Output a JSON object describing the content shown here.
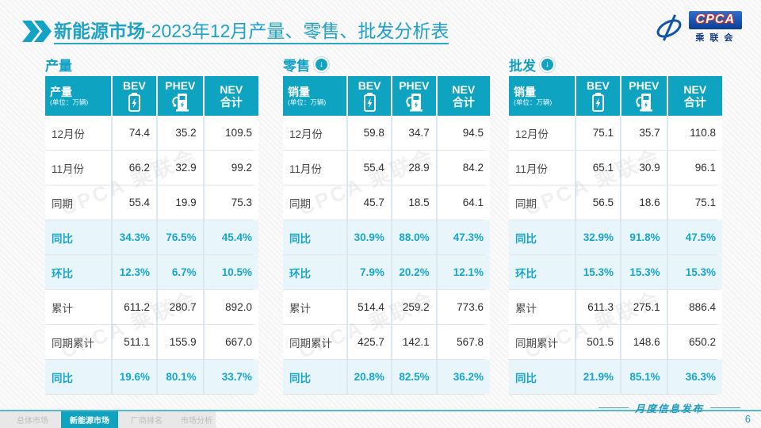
{
  "slide": {
    "title_bold": "新能源市场",
    "title_rest": "-2023年12月产量、零售、批发分析表",
    "logo": {
      "acronym": "CPCA",
      "name_cn": "乘联会"
    },
    "watermark": "CPCA 乘联会"
  },
  "tables": [
    {
      "section_title": "产量",
      "corner_label": "产量",
      "corner_unit": "(单位：万辆)",
      "col_bev": "BEV",
      "col_phev": "PHEV",
      "col_nev": "NEV\n合计",
      "rows": [
        {
          "label": "12月份",
          "values": [
            "74.4",
            "35.2",
            "109.5"
          ],
          "highlight": false
        },
        {
          "label": "11月份",
          "values": [
            "66.2",
            "32.9",
            "99.2"
          ],
          "highlight": false
        },
        {
          "label": "同期",
          "values": [
            "55.4",
            "19.9",
            "75.3"
          ],
          "highlight": false
        },
        {
          "label": "同比",
          "values": [
            "34.3%",
            "76.5%",
            "45.4%"
          ],
          "highlight": true
        },
        {
          "label": "环比",
          "values": [
            "12.3%",
            "6.7%",
            "10.5%"
          ],
          "highlight": true
        },
        {
          "label": "累计",
          "values": [
            "611.2",
            "280.7",
            "892.0"
          ],
          "highlight": false
        },
        {
          "label": "同期累计",
          "values": [
            "511.1",
            "155.9",
            "667.0"
          ],
          "highlight": false
        },
        {
          "label": "同比",
          "values": [
            "19.6%",
            "80.1%",
            "33.7%"
          ],
          "highlight": true
        }
      ]
    },
    {
      "section_title": "零售",
      "corner_label": "销量",
      "corner_unit": "(单位：万辆)",
      "col_bev": "BEV",
      "col_phev": "PHEV",
      "col_nev": "NEV\n合计",
      "rows": [
        {
          "label": "12月份",
          "values": [
            "59.8",
            "34.7",
            "94.5"
          ],
          "highlight": false
        },
        {
          "label": "11月份",
          "values": [
            "55.4",
            "28.9",
            "84.2"
          ],
          "highlight": false
        },
        {
          "label": "同期",
          "values": [
            "45.7",
            "18.5",
            "64.1"
          ],
          "highlight": false
        },
        {
          "label": "同比",
          "values": [
            "30.9%",
            "88.0%",
            "47.3%"
          ],
          "highlight": true
        },
        {
          "label": "环比",
          "values": [
            "7.9%",
            "20.2%",
            "12.1%"
          ],
          "highlight": true
        },
        {
          "label": "累计",
          "values": [
            "514.4",
            "259.2",
            "773.6"
          ],
          "highlight": false
        },
        {
          "label": "同期累计",
          "values": [
            "425.7",
            "142.1",
            "567.8"
          ],
          "highlight": false
        },
        {
          "label": "同比",
          "values": [
            "20.8%",
            "82.5%",
            "36.2%"
          ],
          "highlight": true
        }
      ]
    },
    {
      "section_title": "批发",
      "corner_label": "销量",
      "corner_unit": "(单位：万辆)",
      "col_bev": "BEV",
      "col_phev": "PHEV",
      "col_nev": "NEV\n合计",
      "rows": [
        {
          "label": "12月份",
          "values": [
            "75.1",
            "35.7",
            "110.8"
          ],
          "highlight": false
        },
        {
          "label": "11月份",
          "values": [
            "65.1",
            "30.9",
            "96.1"
          ],
          "highlight": false
        },
        {
          "label": "同期",
          "values": [
            "56.5",
            "18.6",
            "75.1"
          ],
          "highlight": false
        },
        {
          "label": "同比",
          "values": [
            "32.9%",
            "91.8%",
            "47.5%"
          ],
          "highlight": true
        },
        {
          "label": "环比",
          "values": [
            "15.3%",
            "15.3%",
            "15.3%"
          ],
          "highlight": true
        },
        {
          "label": "累计",
          "values": [
            "611.3",
            "275.1",
            "886.4"
          ],
          "highlight": false
        },
        {
          "label": "同期累计",
          "values": [
            "501.5",
            "148.6",
            "650.2"
          ],
          "highlight": false
        },
        {
          "label": "同比",
          "values": [
            "21.9%",
            "85.1%",
            "36.3%"
          ],
          "highlight": true
        }
      ]
    }
  ],
  "footer": {
    "tabs": [
      {
        "label": "总体市场",
        "active": false
      },
      {
        "label": "新能源市场",
        "active": true
      },
      {
        "label": "厂商排名",
        "active": false
      },
      {
        "label": "市场分析",
        "active": false
      }
    ],
    "publish_label": "月度信息发布",
    "page_number": "6",
    "down_arrow": "↓"
  },
  "colors": {
    "teal": "#0ea3c0",
    "highlight_bg": "#e8f5fa",
    "highlight_text": "#17a5ca",
    "logo_blue": "#0c3e97"
  }
}
